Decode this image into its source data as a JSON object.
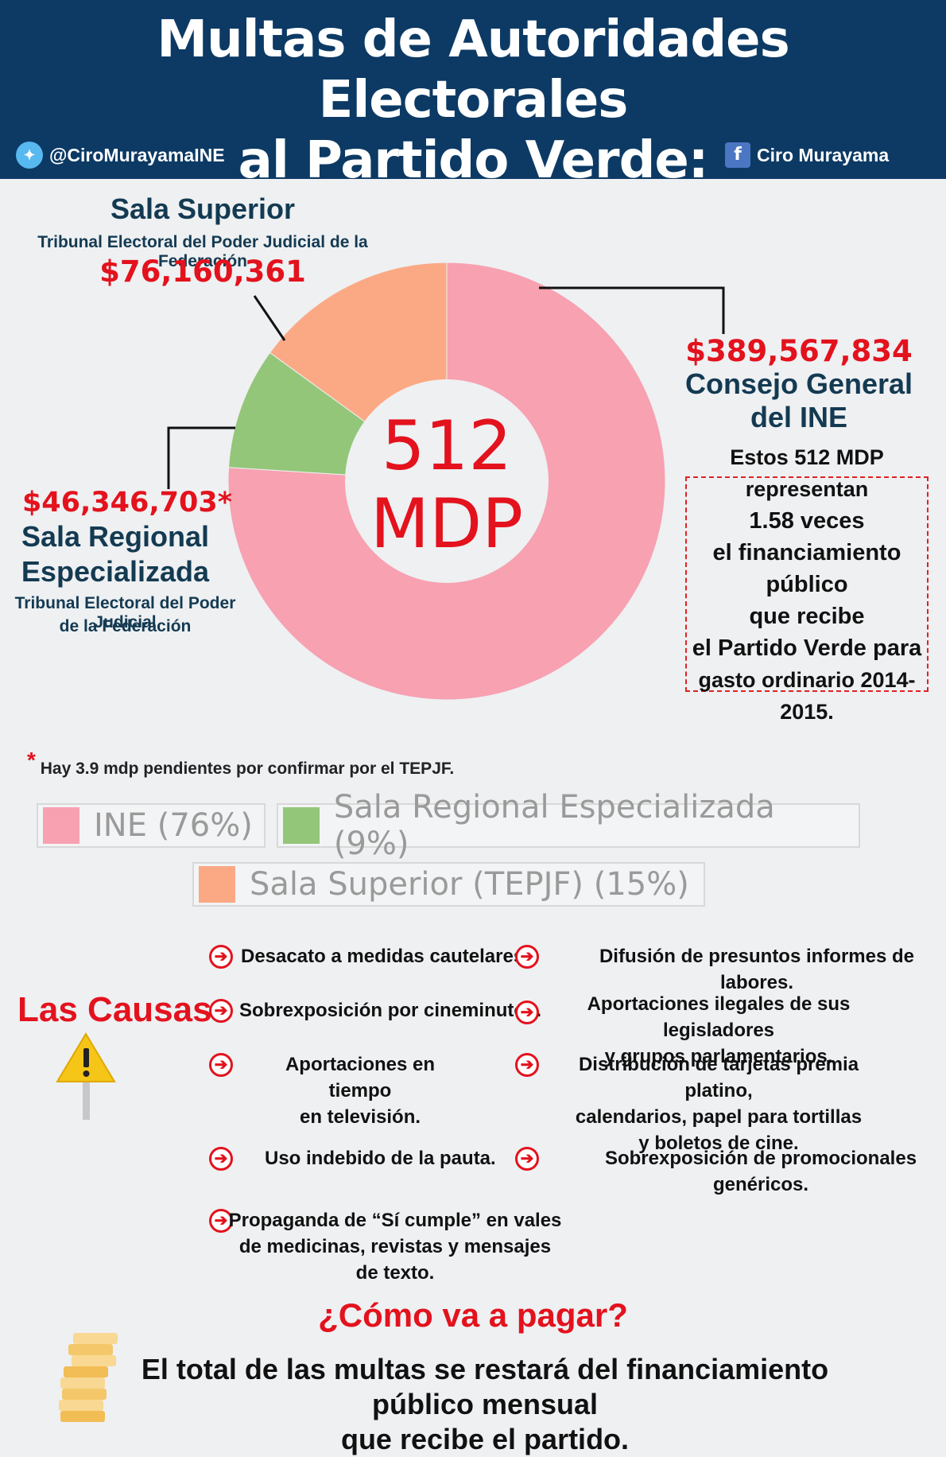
{
  "header": {
    "title_line1": "Multas de Autoridades Electorales",
    "title_line2": "al Partido Verde:",
    "twitter_handle": "@CiroMurayamaINE",
    "facebook_name": "Ciro Murayama"
  },
  "labels": {
    "superior_title": "Sala Superior",
    "superior_subtitle": "Tribunal Electoral del Poder Judicial de la Federación",
    "superior_amount": "$76,160,361",
    "ine_amount": "$389,567,834",
    "ine_title": "Consejo General del INE",
    "regional_amount": "$46,346,703*",
    "regional_title_1": "Sala Regional",
    "regional_title_2": "Especializada",
    "regional_subtitle_1": "Tribunal Electoral del Poder Judicial",
    "regional_subtitle_2": "de la Federación"
  },
  "chart_data": {
    "type": "pie",
    "center_value": "512",
    "center_unit": "MDP",
    "slices": [
      {
        "name": "INE (76%)",
        "value": 76,
        "color": "#f7a1b1"
      },
      {
        "name": "Sala Regional Especializada (9%)",
        "value": 9,
        "color": "#94c67a"
      },
      {
        "name": "Sala Superior (TEPJF) (15%)",
        "value": 15,
        "color": "#fba985"
      }
    ]
  },
  "note": {
    "line1": "Estos 512 MDP representan",
    "line2": "1.58 veces",
    "line3": "el financiamiento público",
    "line4": "que recibe",
    "line5": "el Partido Verde para",
    "line6": "gasto ordinario 2014-2015."
  },
  "footnote": {
    "star": "*",
    "text": "Hay 3.9 mdp pendientes por confirmar por el TEPJF."
  },
  "legend": {
    "ine": "INE (76%)",
    "regional": "Sala Regional Especializada (9%)",
    "superior": "Sala Superior (TEPJF) (15%)"
  },
  "causes": {
    "title": "Las Causas:",
    "left": [
      {
        "l1": "Desacato a medidas cautelares.",
        "l2": ""
      },
      {
        "l1": "Sobrexposición por cineminutos.",
        "l2": ""
      },
      {
        "l1": "Aportaciones en tiempo",
        "l2": "en televisión."
      },
      {
        "l1": "Uso indebido de la pauta.",
        "l2": ""
      },
      {
        "l1": "Propaganda de “Sí cumple” en vales",
        "l2": "de medicinas, revistas y mensajes de texto."
      }
    ],
    "right": [
      {
        "l1": "Difusión de presuntos informes de labores.",
        "l2": "",
        "l3": ""
      },
      {
        "l1": "Aportaciones ilegales de sus legisladores",
        "l2": "y grupos parlamentarios.",
        "l3": ""
      },
      {
        "l1": "Distribución de tarjetas premia platino,",
        "l2": "calendarios, papel para tortillas",
        "l3": "y boletos de cine."
      },
      {
        "l1": "Sobrexposición de promocionales genéricos.",
        "l2": "",
        "l3": ""
      }
    ]
  },
  "payment": {
    "title": "¿Cómo va a pagar?",
    "line1": "El total de las multas se restará del financiamiento público mensual",
    "line2": "que recibe el partido."
  }
}
